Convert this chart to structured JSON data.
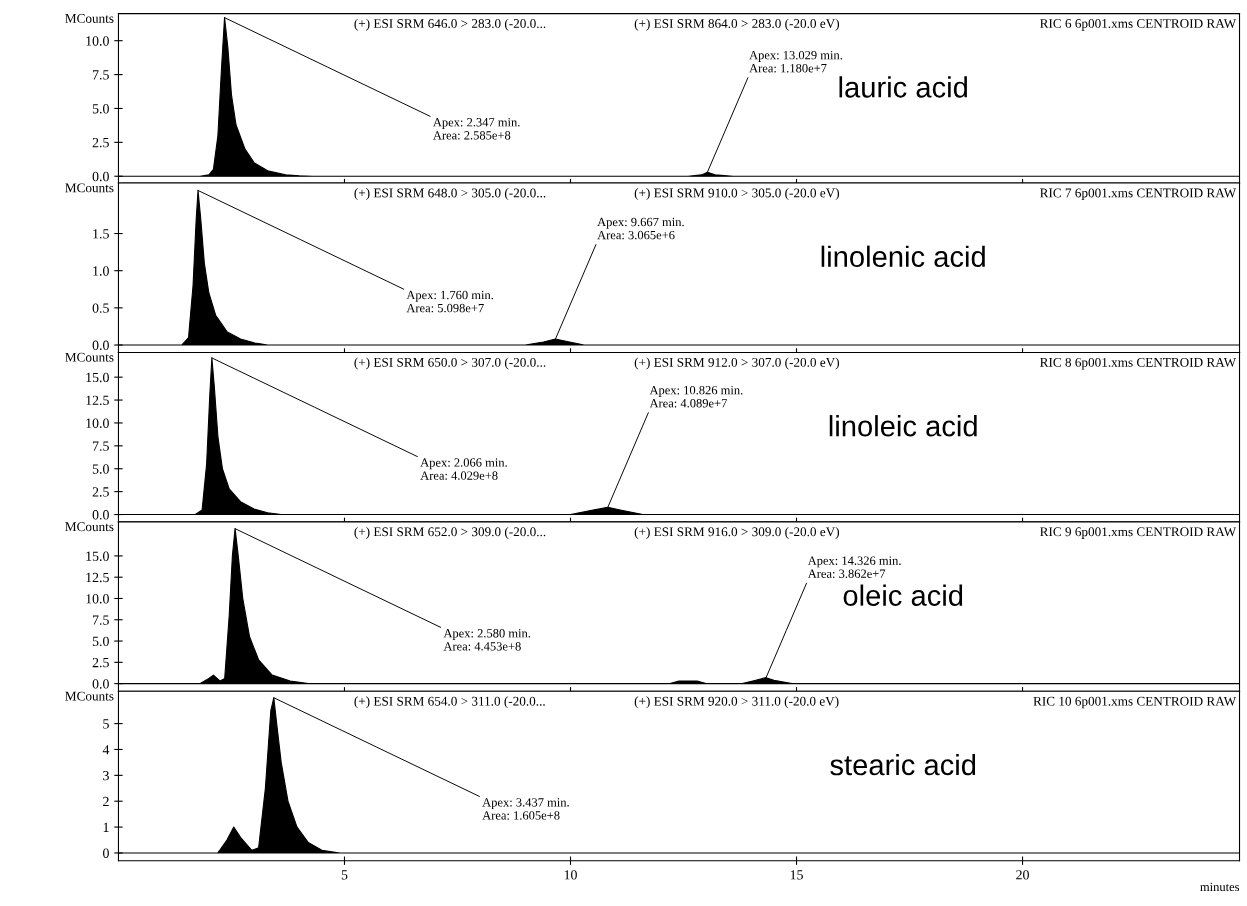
{
  "chart_data": [
    {
      "type": "area",
      "title": "lauric acid",
      "ylabel": "MCounts",
      "xlim": [
        0,
        24.8
      ],
      "xticks": [
        5,
        10,
        15,
        20
      ],
      "tick_labels": "y",
      "ylim": [
        -0.5,
        12.0
      ],
      "yticks": [
        {
          "value": 0,
          "label": "0.0"
        },
        {
          "value": 2.5,
          "label": "2.5"
        },
        {
          "value": 5,
          "label": "5.0"
        },
        {
          "value": 7.5,
          "label": "7.5"
        },
        {
          "value": 10,
          "label": "10.0"
        }
      ],
      "grid": false,
      "legend": false,
      "series": [
        {
          "color": "#000000",
          "x": [
            0,
            1.8,
            2.0,
            2.1,
            2.2,
            2.28,
            2.347,
            2.42,
            2.5,
            2.6,
            2.8,
            3.0,
            3.3,
            3.7,
            4.0,
            4.3,
            12.6,
            12.9,
            13.029,
            13.2,
            13.6,
            24.8
          ],
          "values": [
            0,
            0,
            0.1,
            0.5,
            3,
            8,
            11.7,
            9.5,
            6,
            3.8,
            2,
            1,
            0.4,
            0.1,
            0.03,
            0,
            0,
            0.1,
            0.3,
            0.1,
            0,
            0
          ]
        }
      ],
      "annotations": [
        "(+) ESI SRM 646.0 > 283.0 (-20.0...",
        "(+) ESI SRM 864.0 > 283.0 (-20.0 eV)",
        "RIC 6 6p001.xms CENTROID RAW",
        {
          "text": "Apex: 2.347 min.\nArea: 2.585e+8",
          "x": 2.347,
          "y": 11.7
        },
        {
          "text": "Apex: 13.029 min.\nArea: 1.180e+7",
          "x": 13.029,
          "y": 0.3
        }
      ]
    },
    {
      "type": "area",
      "title": "linolenic acid",
      "ylabel": "MCounts",
      "xlim": [
        0,
        24.8
      ],
      "xticks": [
        5,
        10,
        15,
        20
      ],
      "tick_labels": "y",
      "ylim": [
        -0.1,
        2.18
      ],
      "yticks": [
        {
          "value": 0,
          "label": "0.0"
        },
        {
          "value": 0.5,
          "label": "0.5"
        },
        {
          "value": 1,
          "label": "1.0"
        },
        {
          "value": 1.5,
          "label": "1.5"
        }
      ],
      "grid": false,
      "legend": false,
      "series": [
        {
          "color": "#000000",
          "x": [
            0,
            1.4,
            1.55,
            1.65,
            1.72,
            1.76,
            1.82,
            1.9,
            2.0,
            2.15,
            2.4,
            2.7,
            3.0,
            3.3,
            9.0,
            9.4,
            9.667,
            9.9,
            10.3,
            24.8
          ],
          "values": [
            0,
            0,
            0.1,
            0.8,
            1.7,
            2.08,
            1.7,
            1.1,
            0.7,
            0.4,
            0.18,
            0.08,
            0.03,
            0,
            0,
            0.04,
            0.08,
            0.05,
            0,
            0
          ]
        }
      ],
      "annotations": [
        "(+) ESI SRM 648.0 > 305.0 (-20.0...",
        "(+) ESI SRM 910.0 > 305.0 (-20.0 eV)",
        "RIC 7 6p001.xms CENTROID RAW",
        {
          "text": "Apex: 1.760 min.\nArea: 5.098e+7",
          "x": 1.76,
          "y": 2.08
        },
        {
          "text": "Apex: 9.667 min.\nArea: 3.065e+6",
          "x": 9.667,
          "y": 0.08
        }
      ]
    },
    {
      "type": "area",
      "title": "linoleic acid",
      "ylabel": "MCounts",
      "xlim": [
        0,
        24.8
      ],
      "xticks": [
        5,
        10,
        15,
        20
      ],
      "tick_labels": "y",
      "ylim": [
        -0.8,
        17.7
      ],
      "yticks": [
        {
          "value": 0,
          "label": "0.0"
        },
        {
          "value": 2.5,
          "label": "2.5"
        },
        {
          "value": 5,
          "label": "5.0"
        },
        {
          "value": 7.5,
          "label": "7.5"
        },
        {
          "value": 10,
          "label": "10.0"
        },
        {
          "value": 12.5,
          "label": "12.5"
        },
        {
          "value": 15,
          "label": "15.0"
        }
      ],
      "grid": false,
      "legend": false,
      "series": [
        {
          "color": "#000000",
          "x": [
            0,
            1.7,
            1.85,
            1.95,
            2.02,
            2.066,
            2.12,
            2.2,
            2.3,
            2.45,
            2.7,
            3.0,
            3.3,
            3.6,
            10.0,
            10.5,
            10.826,
            11.1,
            11.6,
            24.8
          ],
          "values": [
            0,
            0,
            0.5,
            5.5,
            13,
            17.1,
            14,
            8.5,
            5,
            2.8,
            1.4,
            0.6,
            0.2,
            0,
            0,
            0.5,
            0.8,
            0.5,
            0,
            0
          ]
        }
      ],
      "annotations": [
        "(+) ESI SRM 650.0 > 307.0 (-20.0...",
        "(+) ESI SRM 912.0 > 307.0 (-20.0 eV)",
        "RIC 8 6p001.xms CENTROID RAW",
        {
          "text": "Apex: 2.066 min.\nArea: 4.029e+8",
          "x": 2.066,
          "y": 17.1
        },
        {
          "text": "Apex: 10.826 min.\nArea: 4.089e+7",
          "x": 10.826,
          "y": 0.8
        }
      ]
    },
    {
      "type": "area",
      "title": "oleic acid",
      "ylabel": "MCounts",
      "xlim": [
        0,
        24.8
      ],
      "xticks": [
        5,
        10,
        15,
        20
      ],
      "tick_labels": "y",
      "ylim": [
        -0.9,
        19.0
      ],
      "yticks": [
        {
          "value": 0,
          "label": "0.0"
        },
        {
          "value": 2.5,
          "label": "2.5"
        },
        {
          "value": 5,
          "label": "5.0"
        },
        {
          "value": 7.5,
          "label": "7.5"
        },
        {
          "value": 10,
          "label": "10.0"
        },
        {
          "value": 12.5,
          "label": "12.5"
        },
        {
          "value": 15,
          "label": "15.0"
        }
      ],
      "grid": false,
      "legend": false,
      "series": [
        {
          "color": "#000000",
          "x": [
            0,
            1.8,
            2.0,
            2.1,
            2.25,
            2.35,
            2.45,
            2.52,
            2.58,
            2.65,
            2.75,
            2.9,
            3.1,
            3.4,
            3.8,
            4.2,
            12.2,
            12.4,
            12.8,
            13.0,
            13.8,
            14.1,
            14.326,
            14.5,
            14.9,
            24.8
          ],
          "values": [
            0,
            0,
            0.6,
            1.0,
            0.3,
            0.6,
            8,
            15,
            18.2,
            15,
            10,
            5.5,
            2.8,
            1.0,
            0.3,
            0,
            0,
            0.3,
            0.3,
            0,
            0,
            0.4,
            0.7,
            0.4,
            0,
            0
          ]
        }
      ],
      "annotations": [
        "(+) ESI SRM 652.0 > 309.0 (-20.0...",
        "(+) ESI SRM 916.0 > 309.0 (-20.0 eV)",
        "RIC 9 6p001.xms CENTROID RAW",
        {
          "text": "Apex: 2.580 min.\nArea: 4.453e+8",
          "x": 2.58,
          "y": 18.2
        },
        {
          "text": "Apex: 14.326 min.\nArea: 3.862e+7",
          "x": 14.326,
          "y": 0.7
        }
      ]
    },
    {
      "type": "area",
      "title": "stearic acid",
      "ylabel": "MCounts",
      "xlabel": "minutes",
      "xlim": [
        0,
        24.8
      ],
      "xticks": [
        5,
        10,
        15,
        20
      ],
      "ylim": [
        -0.3,
        6.25
      ],
      "yticks": [
        0,
        1,
        2,
        3,
        4,
        5
      ],
      "grid": false,
      "legend": false,
      "series": [
        {
          "color": "#000000",
          "x": [
            0,
            2.2,
            2.4,
            2.55,
            2.7,
            2.95,
            3.1,
            3.25,
            3.37,
            3.437,
            3.5,
            3.6,
            3.75,
            3.95,
            4.2,
            4.5,
            4.9,
            24.8
          ],
          "values": [
            0,
            0,
            0.5,
            1.0,
            0.6,
            0.1,
            0.2,
            2.5,
            5.5,
            6.0,
            5.0,
            3.5,
            2.0,
            1.0,
            0.4,
            0.1,
            0,
            0
          ]
        }
      ],
      "annotations": [
        "(+) ESI SRM 654.0 > 311.0 (-20.0...",
        "(+) ESI SRM 920.0 > 311.0 (-20.0 eV)",
        "RIC 10 6p001.xms CENTROID RAW",
        {
          "text": "Apex: 3.437 min.\nArea: 1.605e+8",
          "x": 3.437,
          "y": 6.0
        }
      ]
    }
  ]
}
